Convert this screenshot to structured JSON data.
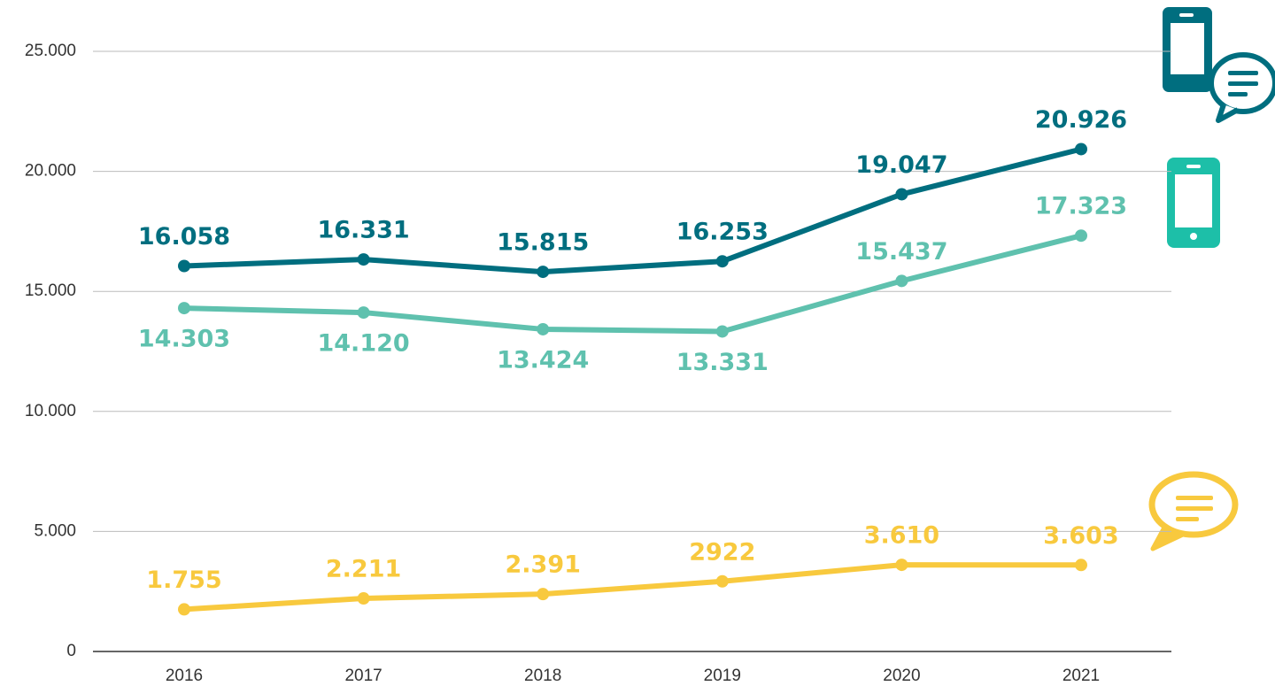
{
  "chart_data": {
    "type": "line",
    "categories": [
      "2016",
      "2017",
      "2018",
      "2019",
      "2020",
      "2021"
    ],
    "series": [
      {
        "color": "#006e7f",
        "values": [
          16058,
          16331,
          15815,
          16253,
          19047,
          20926
        ],
        "value_labels": [
          "16.058",
          "16.331",
          "15.815",
          "16.253",
          "19.047",
          "20.926"
        ]
      },
      {
        "color": "#5fc1ae",
        "values": [
          14303,
          14120,
          13424,
          13331,
          15437,
          17323
        ],
        "value_labels": [
          "14.303",
          "14.120",
          "13.424",
          "13.331",
          "15.437",
          "17.323"
        ]
      },
      {
        "color": "#f8c93e",
        "values": [
          1755,
          2211,
          2391,
          2922,
          3610,
          3603
        ],
        "value_labels": [
          "1.755",
          "2.211",
          "2.391",
          "2922",
          "3.610",
          "3.603"
        ]
      }
    ],
    "ylim": [
      0,
      25000
    ],
    "yticks": [
      0,
      {
        "value": 5000,
        "label": "5.000"
      },
      {
        "value": 10000,
        "label": "10.000"
      },
      {
        "value": 15000,
        "label": "15.000"
      },
      {
        "value": 20000,
        "label": "20.000"
      },
      {
        "value": 25000,
        "label": "25.000"
      }
    ],
    "grid": true
  }
}
